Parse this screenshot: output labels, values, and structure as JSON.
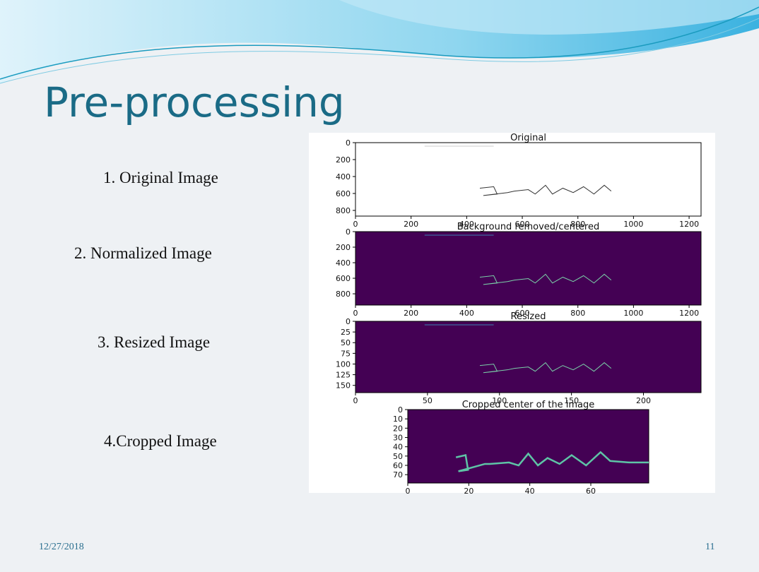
{
  "slide": {
    "title": "Pre-processing",
    "steps": [
      "1. Original Image",
      "2. Normalized Image",
      "3. Resized Image",
      "4.Cropped Image"
    ],
    "panels": [
      {
        "title": "Original",
        "xlim": [
          0,
          1243
        ],
        "ylim": [
          0,
          867
        ],
        "xticks": [
          0,
          200,
          400,
          600,
          800,
          1000,
          1200
        ],
        "yticks": [
          0,
          200,
          400,
          600,
          800
        ]
      },
      {
        "title": "Background removed/centered",
        "xlim": [
          0,
          1243
        ],
        "ylim": [
          0,
          945
        ],
        "xticks": [
          0,
          200,
          400,
          600,
          800,
          1000,
          1200
        ],
        "yticks": [
          0,
          200,
          400,
          600,
          800
        ]
      },
      {
        "title": "Resized",
        "xlim": [
          0,
          240
        ],
        "ylim": [
          0,
          167
        ],
        "xticks": [
          0,
          50,
          100,
          150,
          200
        ],
        "yticks": [
          0,
          25,
          50,
          75,
          100,
          125,
          150
        ]
      },
      {
        "title": "Cropped center of the image",
        "xlim": [
          0,
          79
        ],
        "ylim": [
          0,
          79
        ],
        "xticks": [
          0,
          20,
          40,
          60
        ],
        "yticks": [
          0,
          10,
          20,
          30,
          40,
          50,
          60,
          70
        ]
      }
    ],
    "footer": {
      "date": "12/27/2018",
      "page": "11"
    }
  }
}
